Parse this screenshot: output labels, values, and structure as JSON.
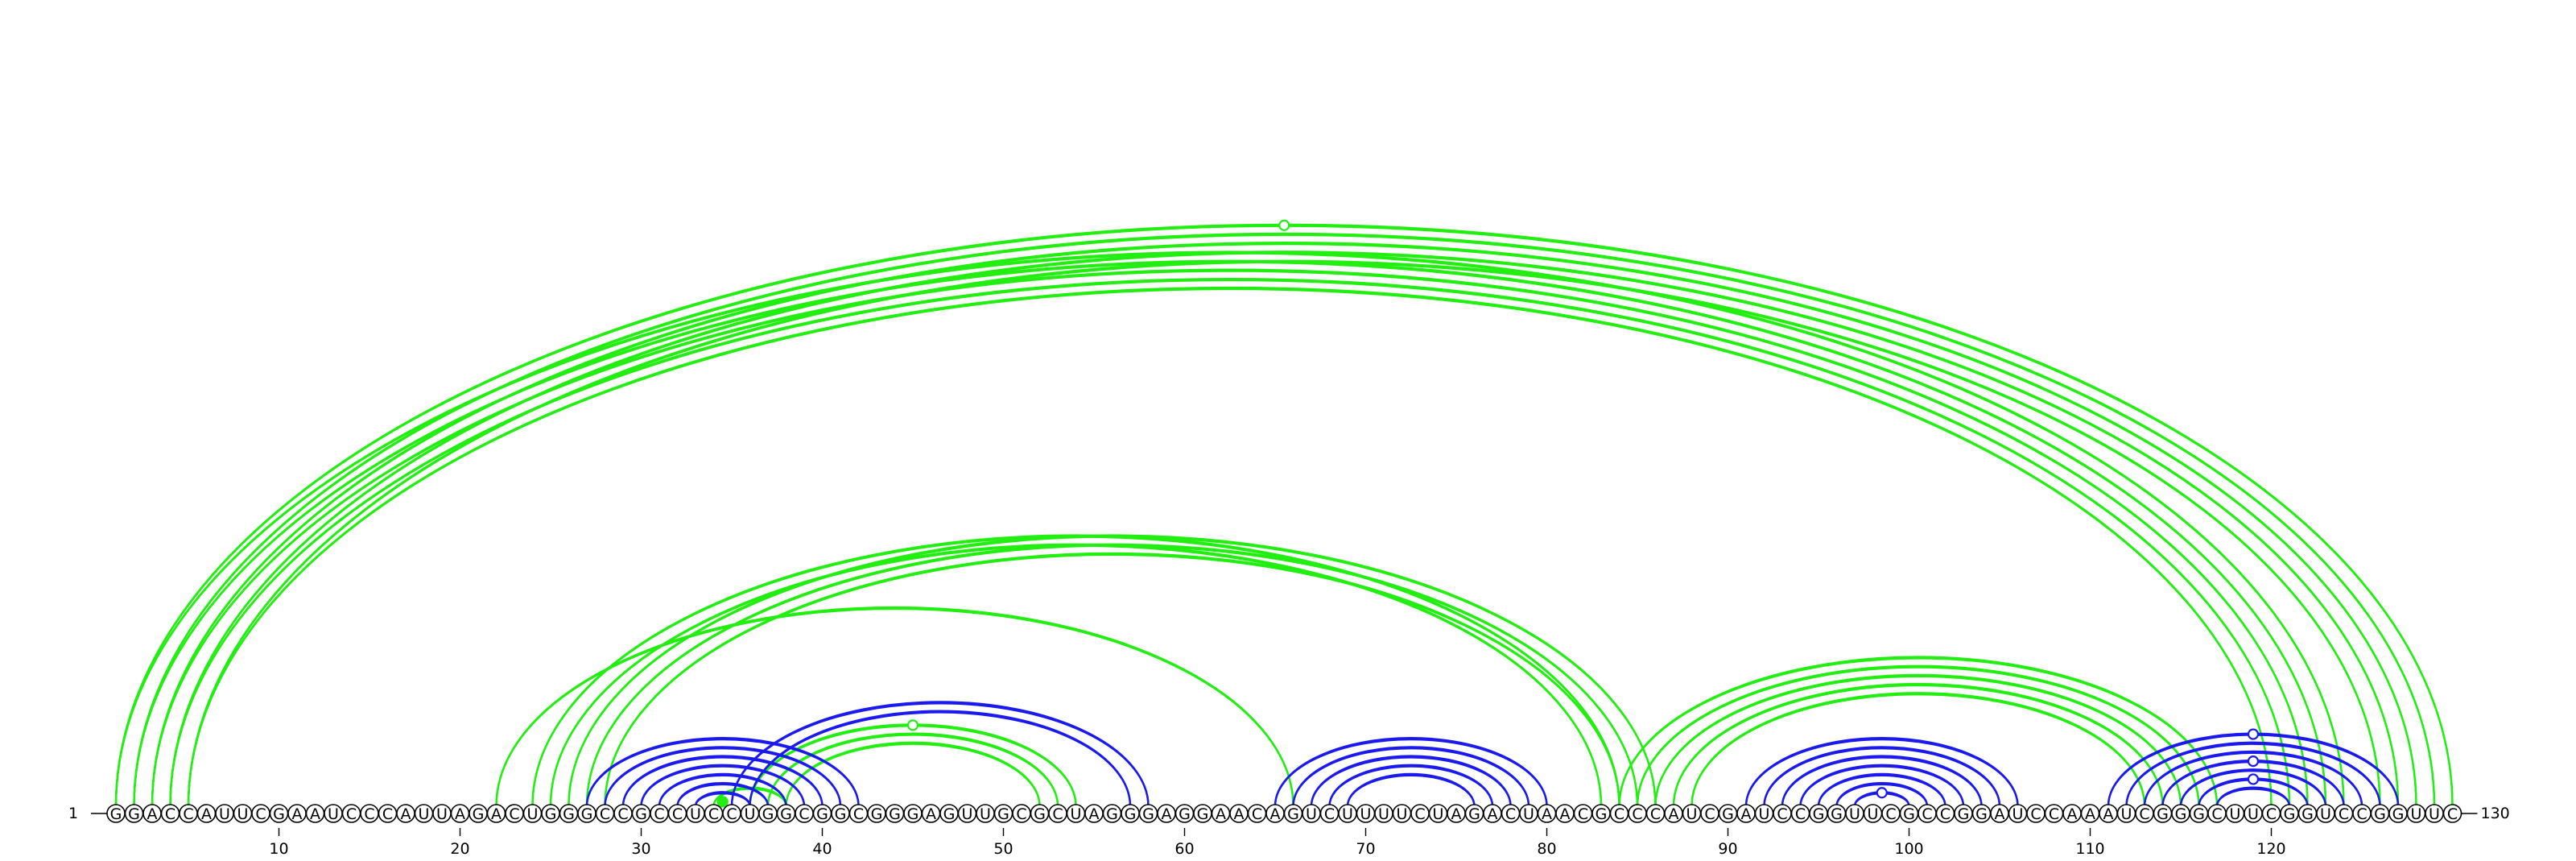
{
  "sequence": "GGACCAUUCGAAUCCCAUUAGACUGGGCCGCCUCCUGGCGGCGGGAGUUGCGCUAGGGAGGAACAGUCUUUUCUAGACUAACGCCCAUCGAUCCGGUUCGCCGGAUCCAAAUCGGGCUUCGGUCCGGUUC",
  "start_label": "1",
  "end_label": "130",
  "tick_interval": 10,
  "colors": {
    "green": "#22ee11",
    "blue": "#1a1aee",
    "backbone": "#000000"
  },
  "helices": [
    {
      "color": "green",
      "pairs": [
        [
          1,
          130
        ],
        [
          2,
          129
        ],
        [
          3,
          128
        ],
        [
          4,
          127
        ],
        [
          5,
          126
        ]
      ]
    },
    {
      "color": "green",
      "pairs": [
        [
          1,
          124
        ],
        [
          2,
          123
        ],
        [
          3,
          122
        ],
        [
          4,
          121
        ],
        [
          5,
          120
        ]
      ]
    },
    {
      "color": "green",
      "pairs": [
        [
          22,
          66
        ]
      ]
    },
    {
      "color": "green",
      "pairs": [
        [
          24,
          84
        ],
        [
          25,
          83
        ]
      ]
    },
    {
      "color": "green",
      "pairs": [
        [
          26,
          86
        ],
        [
          27,
          85
        ],
        [
          28,
          84
        ]
      ]
    },
    {
      "color": "green",
      "pairs": [
        [
          36,
          54
        ],
        [
          37,
          53
        ],
        [
          38,
          52
        ]
      ]
    },
    {
      "color": "green",
      "pairs": [
        [
          34,
          38
        ]
      ]
    },
    {
      "color": "green",
      "pairs": [
        [
          84,
          117
        ],
        [
          85,
          116
        ],
        [
          86,
          115
        ],
        [
          87,
          114
        ],
        [
          88,
          113
        ]
      ]
    },
    {
      "color": "blue",
      "pairs": [
        [
          27,
          42
        ],
        [
          28,
          41
        ],
        [
          29,
          40
        ],
        [
          30,
          39
        ],
        [
          31,
          38
        ],
        [
          32,
          37
        ],
        [
          33,
          36
        ]
      ]
    },
    {
      "color": "blue",
      "pairs": [
        [
          35,
          58
        ],
        [
          36,
          57
        ]
      ]
    },
    {
      "color": "blue",
      "pairs": [
        [
          65,
          80
        ],
        [
          66,
          79
        ],
        [
          67,
          78
        ],
        [
          68,
          77
        ],
        [
          69,
          76
        ]
      ]
    },
    {
      "color": "blue",
      "pairs": [
        [
          91,
          106
        ],
        [
          92,
          105
        ],
        [
          93,
          104
        ],
        [
          94,
          103
        ],
        [
          95,
          102
        ],
        [
          96,
          101
        ],
        [
          97,
          100
        ]
      ]
    },
    {
      "color": "blue",
      "pairs": [
        [
          111,
          127
        ],
        [
          112,
          126
        ],
        [
          113,
          125
        ],
        [
          114,
          124
        ],
        [
          115,
          123
        ],
        [
          116,
          122
        ],
        [
          117,
          121
        ]
      ]
    }
  ],
  "markers": [
    {
      "color": "green",
      "between": [
        1,
        130
      ],
      "filled": false
    },
    {
      "color": "green",
      "between": [
        36,
        54
      ],
      "filled": false
    },
    {
      "color": "green",
      "between": [
        34,
        35
      ],
      "filled": true
    },
    {
      "color": "blue",
      "between": [
        111,
        127
      ],
      "filled": false
    },
    {
      "color": "blue",
      "between": [
        114,
        124
      ],
      "filled": false
    },
    {
      "color": "blue",
      "between": [
        116,
        122
      ],
      "filled": false
    },
    {
      "color": "blue",
      "between": [
        97,
        100
      ],
      "filled": false
    }
  ]
}
